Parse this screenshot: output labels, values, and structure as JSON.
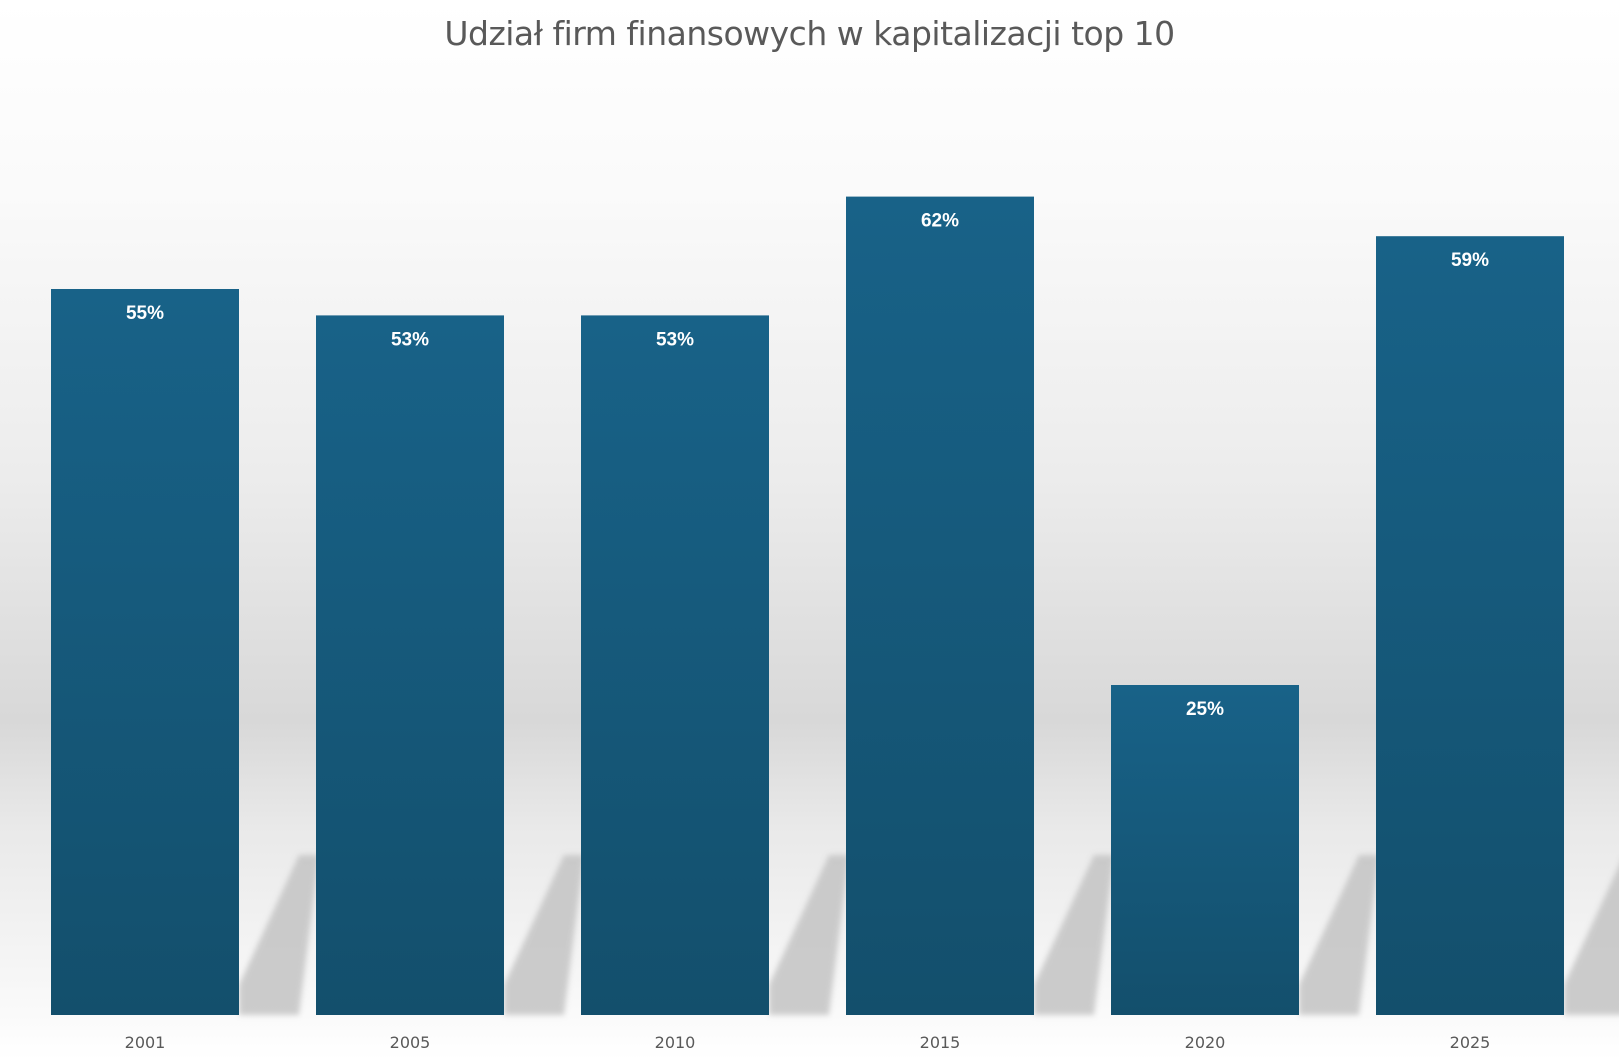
{
  "chart_data": {
    "type": "bar",
    "title": "Udział firm finansowych w kapitalizacji top 10",
    "categories": [
      "2001",
      "2005",
      "2010",
      "2015",
      "2020",
      "2025"
    ],
    "values": [
      55,
      53,
      53,
      62,
      25,
      59
    ],
    "data_labels": [
      "55%",
      "53%",
      "53%",
      "62%",
      "25%",
      "59%"
    ],
    "ylim": [
      0,
      70
    ],
    "value_axis_visible": false,
    "grid": false,
    "legend": "none",
    "colors": {
      "bar_top": "#186288",
      "bar_bottom": "#134f6c",
      "shadow": "#c4c4c4",
      "label": "#ffffff",
      "tick": "#595959",
      "title": "#595959"
    }
  }
}
